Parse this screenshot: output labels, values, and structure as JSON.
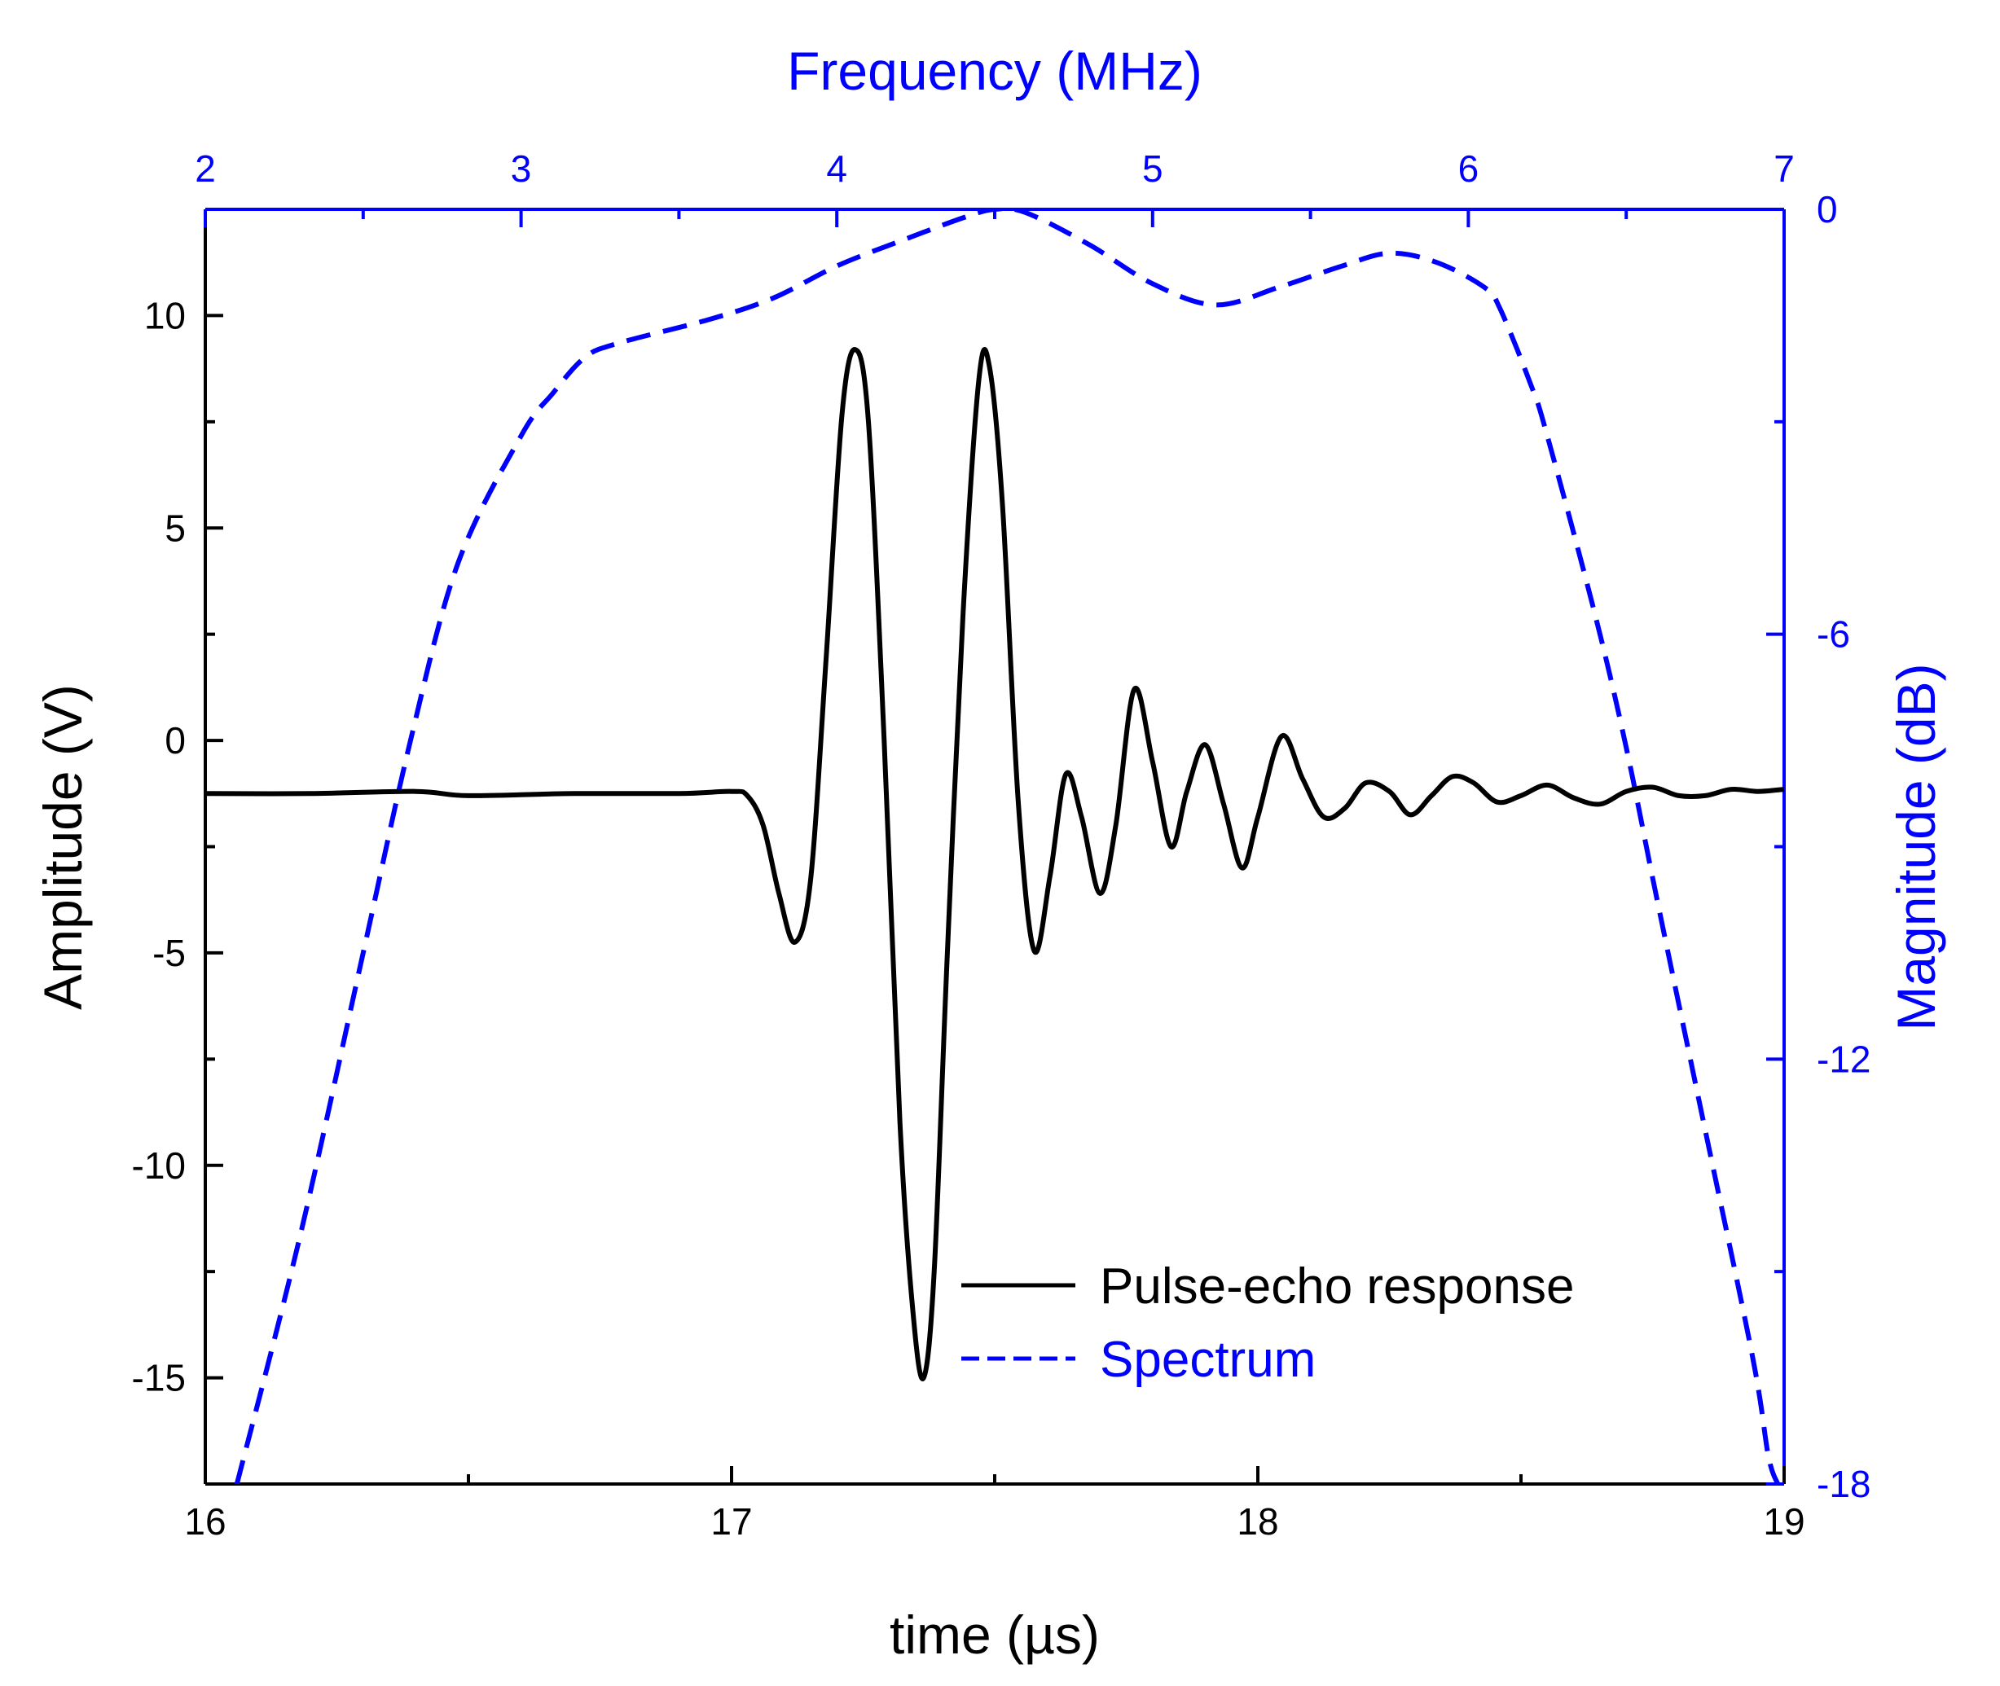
{
  "chart_data": {
    "type": "line",
    "colors": {
      "pulse": "#000000",
      "spectrum": "#0000ff",
      "frame": "#000000"
    },
    "axes": {
      "bottom": {
        "label": "time (µs)",
        "range": [
          16,
          19
        ],
        "ticks": [
          16,
          17,
          18,
          19
        ],
        "tick_labels": [
          "16",
          "17",
          "18",
          "19"
        ],
        "minor_ticks": [
          16.5,
          17.5,
          18.5
        ]
      },
      "left": {
        "label": "Amplitude (V)",
        "range": [
          -17.5,
          12.5
        ],
        "ticks": [
          -15,
          -10,
          -5,
          0,
          5,
          10
        ],
        "tick_labels": [
          "-15",
          "-10",
          "-5",
          "0",
          "5",
          "10"
        ],
        "minor_ticks": [
          -12.5,
          -7.5,
          -2.5,
          2.5,
          7.5
        ]
      },
      "top": {
        "label": "Frequency (MHz)",
        "range": [
          2,
          7
        ],
        "ticks": [
          2,
          3,
          4,
          5,
          6,
          7
        ],
        "tick_labels": [
          "2",
          "3",
          "4",
          "5",
          "6",
          "7"
        ],
        "minor_ticks": [
          2.5,
          3.5,
          4.5,
          5.5,
          6.5
        ]
      },
      "right": {
        "label": "Magnitude (dB)",
        "range": [
          -18,
          0
        ],
        "ticks": [
          0,
          -6,
          -12,
          -18
        ],
        "tick_labels": [
          "0",
          "-6",
          "-12",
          "-18"
        ],
        "minor_ticks": [
          -3,
          -9,
          -15
        ]
      }
    },
    "legend": {
      "position": "bottom-right",
      "entries": [
        {
          "label": "Pulse-echo response",
          "style": "solid",
          "color": "#000000"
        },
        {
          "label": "Spectrum",
          "style": "dashed",
          "color": "#0000ff"
        }
      ]
    },
    "series": [
      {
        "name": "Pulse-echo response",
        "axis": "bottom-left",
        "points": [
          [
            16.0,
            -1.25
          ],
          [
            16.2,
            -1.25
          ],
          [
            16.4,
            -1.2
          ],
          [
            16.5,
            -1.3
          ],
          [
            16.7,
            -1.25
          ],
          [
            16.9,
            -1.25
          ],
          [
            17.0,
            -1.2
          ],
          [
            17.03,
            -1.3
          ],
          [
            17.06,
            -2.0
          ],
          [
            17.09,
            -3.6
          ],
          [
            17.12,
            -4.75
          ],
          [
            17.15,
            -3.3
          ],
          [
            17.18,
            2.0
          ],
          [
            17.21,
            7.7
          ],
          [
            17.235,
            9.2
          ],
          [
            17.26,
            7.5
          ],
          [
            17.29,
            0.0
          ],
          [
            17.32,
            -9.0
          ],
          [
            17.345,
            -13.5
          ],
          [
            17.365,
            -15.0
          ],
          [
            17.385,
            -12.5
          ],
          [
            17.41,
            -5.0
          ],
          [
            17.44,
            3.0
          ],
          [
            17.47,
            8.5
          ],
          [
            17.49,
            8.8
          ],
          [
            17.515,
            5.5
          ],
          [
            17.545,
            -1.5
          ],
          [
            17.575,
            -4.95
          ],
          [
            17.605,
            -3.2
          ],
          [
            17.635,
            -0.8
          ],
          [
            17.665,
            -1.8
          ],
          [
            17.7,
            -3.6
          ],
          [
            17.73,
            -2.0
          ],
          [
            17.765,
            1.2
          ],
          [
            17.8,
            -0.5
          ],
          [
            17.835,
            -2.5
          ],
          [
            17.865,
            -1.2
          ],
          [
            17.9,
            -0.1
          ],
          [
            17.935,
            -1.5
          ],
          [
            17.97,
            -3.0
          ],
          [
            18.0,
            -1.8
          ],
          [
            18.045,
            0.1
          ],
          [
            18.085,
            -0.9
          ],
          [
            18.125,
            -1.8
          ],
          [
            18.165,
            -1.6
          ],
          [
            18.205,
            -1.0
          ],
          [
            18.25,
            -1.2
          ],
          [
            18.29,
            -1.75
          ],
          [
            18.33,
            -1.3
          ],
          [
            18.37,
            -0.85
          ],
          [
            18.41,
            -1.0
          ],
          [
            18.455,
            -1.45
          ],
          [
            18.5,
            -1.3
          ],
          [
            18.55,
            -1.05
          ],
          [
            18.6,
            -1.35
          ],
          [
            18.65,
            -1.5
          ],
          [
            18.7,
            -1.2
          ],
          [
            18.75,
            -1.1
          ],
          [
            18.8,
            -1.3
          ],
          [
            18.85,
            -1.3
          ],
          [
            18.9,
            -1.15
          ],
          [
            18.95,
            -1.2
          ],
          [
            19.0,
            -1.15
          ]
        ]
      },
      {
        "name": "Spectrum",
        "axis": "top-right",
        "points": [
          [
            2.1,
            -18.0
          ],
          [
            2.3,
            -14.5
          ],
          [
            2.5,
            -10.5
          ],
          [
            2.65,
            -7.5
          ],
          [
            2.8,
            -5.0
          ],
          [
            3.0,
            -3.2
          ],
          [
            3.1,
            -2.6
          ],
          [
            3.2,
            -2.1
          ],
          [
            3.3,
            -1.9
          ],
          [
            3.6,
            -1.55
          ],
          [
            3.8,
            -1.25
          ],
          [
            4.0,
            -0.8
          ],
          [
            4.2,
            -0.45
          ],
          [
            4.4,
            -0.12
          ],
          [
            4.5,
            0.0
          ],
          [
            4.6,
            -0.05
          ],
          [
            4.8,
            -0.5
          ],
          [
            5.0,
            -1.05
          ],
          [
            5.2,
            -1.35
          ],
          [
            5.4,
            -1.1
          ],
          [
            5.6,
            -0.8
          ],
          [
            5.75,
            -0.62
          ],
          [
            5.9,
            -0.75
          ],
          [
            6.05,
            -1.1
          ],
          [
            6.1,
            -1.4
          ],
          [
            6.2,
            -2.5
          ],
          [
            6.25,
            -3.2
          ],
          [
            6.4,
            -5.7
          ],
          [
            6.5,
            -7.6
          ],
          [
            6.6,
            -9.8
          ],
          [
            6.75,
            -13.0
          ],
          [
            6.9,
            -16.2
          ],
          [
            6.95,
            -17.6
          ],
          [
            6.98,
            -18.0
          ]
        ]
      }
    ]
  }
}
